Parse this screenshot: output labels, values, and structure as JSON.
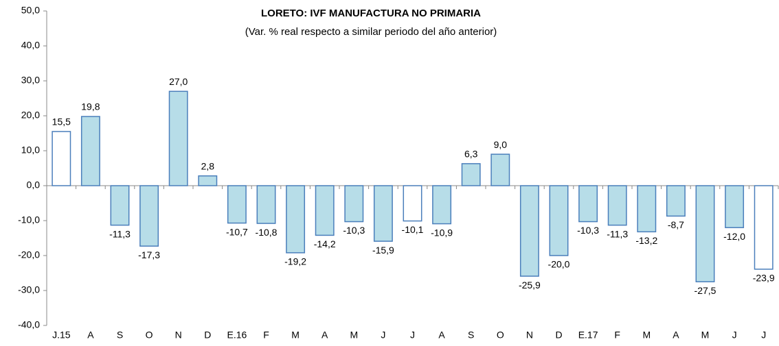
{
  "chart_data": {
    "type": "bar",
    "title": "LORETO: IVF MANUFACTURA NO PRIMARIA",
    "subtitle": "(Var. % real respecto a similar periodo del año anterior)",
    "categories": [
      "J.15",
      "A",
      "S",
      "O",
      "N",
      "D",
      "E.16",
      "F",
      "M",
      "A",
      "M",
      "J",
      "J",
      "A",
      "S",
      "O",
      "N",
      "D",
      "E.17",
      "F",
      "M",
      "A",
      "M",
      "J",
      "J"
    ],
    "values": [
      15.5,
      19.8,
      -11.3,
      -17.3,
      27.0,
      2.8,
      -10.7,
      -10.8,
      -19.2,
      -14.2,
      -10.3,
      -15.9,
      -10.1,
      -10.9,
      6.3,
      9.0,
      -25.9,
      -20.0,
      -10.3,
      -11.3,
      -13.2,
      -8.7,
      -27.5,
      -12.0,
      -23.9
    ],
    "value_labels": [
      "15,5",
      "19,8",
      "-11,3",
      "-17,3",
      "27,0",
      "2,8",
      "-10,7",
      "-10,8",
      "-19,2",
      "-14,2",
      "-10,3",
      "-15,9",
      "-10,1",
      "-10,9",
      "6,3",
      "9,0",
      "-25,9",
      "-20,0",
      "-10,3",
      "-11,3",
      "-13,2",
      "-8,7",
      "-27,5",
      "-12,0",
      "-23,9"
    ],
    "colors": [
      "#ffffff",
      "#b7dde8",
      "#b7dde8",
      "#b7dde8",
      "#b7dde8",
      "#b7dde8",
      "#b7dde8",
      "#b7dde8",
      "#b7dde8",
      "#b7dde8",
      "#b7dde8",
      "#b7dde8",
      "#ffffff",
      "#b7dde8",
      "#b7dde8",
      "#b7dde8",
      "#b7dde8",
      "#b7dde8",
      "#b7dde8",
      "#b7dde8",
      "#b7dde8",
      "#b7dde8",
      "#b7dde8",
      "#b7dde8",
      "#ffffff"
    ],
    "edgecolor": "#4a7ebb",
    "ylim": [
      -40,
      50
    ],
    "yticks": [
      {
        "value": -40,
        "label": "-40,0"
      },
      {
        "value": -30,
        "label": "-30,0"
      },
      {
        "value": -20,
        "label": "-20,0"
      },
      {
        "value": -10,
        "label": "-10,0"
      },
      {
        "value": 0,
        "label": "0,0"
      },
      {
        "value": 10,
        "label": "10,0"
      },
      {
        "value": 20,
        "label": "20,0"
      },
      {
        "value": 30,
        "label": "30,0"
      },
      {
        "value": 40,
        "label": "40,0"
      },
      {
        "value": 50,
        "label": "50,0"
      }
    ],
    "grid": false
  }
}
